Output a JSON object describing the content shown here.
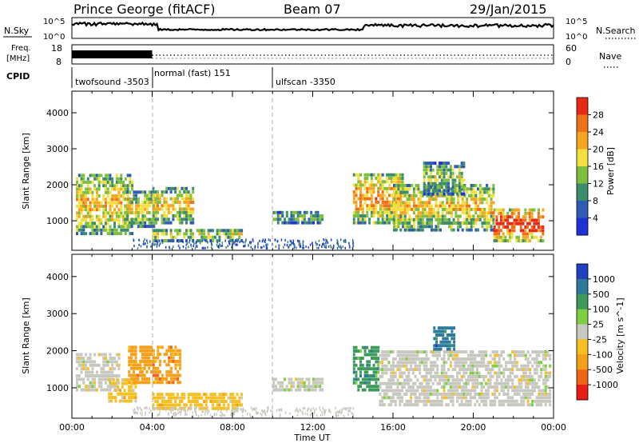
{
  "header": {
    "station": "Prince George (fitACF)",
    "beam": "Beam 07",
    "date": "29/Jan/2015"
  },
  "top_panels": {
    "nsky_label": "N.Sky",
    "nsky_ticks": [
      "10^5",
      "10^0"
    ],
    "nsearch_label": "N.Search",
    "nsearch_ticks": [
      "10^5",
      "10^0"
    ],
    "freq_label_1": "Freq.",
    "freq_label_2": "[MHz]",
    "freq_ticks": [
      "18",
      "8"
    ],
    "nave_label": "Nave",
    "nave_ticks": [
      "60",
      "0"
    ],
    "cpid_label": "CPID",
    "cpid_segments": [
      {
        "name": "twofsound -3503",
        "start_hour": 0
      },
      {
        "name": "normal (fast) 151",
        "start_hour": 4
      },
      {
        "name": "ulfscan -3350",
        "start_hour": 10
      }
    ]
  },
  "chart_data": [
    {
      "type": "heatmap",
      "name": "power-panel",
      "ylabel": "Slant Range [km]",
      "ylim": [
        180,
        4600
      ],
      "yticks": [
        1000,
        2000,
        3000,
        4000
      ],
      "xlim": [
        0,
        24
      ],
      "xticks": [
        0,
        4,
        8,
        12,
        16,
        20,
        24
      ],
      "colorbar": {
        "label": "Power [dB]",
        "ticks": [
          "4",
          "8",
          "12",
          "16",
          "20",
          "24",
          "28"
        ],
        "colors": [
          "#1e32d6",
          "#2e5db3",
          "#3c8c6e",
          "#7fbf3f",
          "#f2e040",
          "#f5a623",
          "#f07018",
          "#e82a14"
        ],
        "range": [
          0,
          32
        ]
      },
      "echo_regions": [
        {
          "t0": 0.2,
          "t1": 3.0,
          "r0": 600,
          "r1": 2300,
          "level": 0.62
        },
        {
          "t0": 2.6,
          "t1": 4.2,
          "r0": 800,
          "r1": 1800,
          "level": 0.55
        },
        {
          "t0": 4.0,
          "t1": 6.0,
          "r0": 900,
          "r1": 1900,
          "level": 0.6
        },
        {
          "t0": 4.0,
          "t1": 8.5,
          "r0": 400,
          "r1": 750,
          "level": 0.5
        },
        {
          "t0": 10.0,
          "t1": 12.5,
          "r0": 900,
          "r1": 1200,
          "level": 0.4
        },
        {
          "t0": 14.0,
          "t1": 16.5,
          "r0": 900,
          "r1": 2300,
          "level": 0.72
        },
        {
          "t0": 16.0,
          "t1": 21.0,
          "r0": 700,
          "r1": 2000,
          "level": 0.62
        },
        {
          "t0": 17.5,
          "t1": 19.5,
          "r0": 1700,
          "r1": 2600,
          "level": 0.45
        },
        {
          "t0": 21.0,
          "t1": 23.5,
          "r0": 400,
          "r1": 1300,
          "level": 0.95
        }
      ]
    },
    {
      "type": "heatmap",
      "name": "velocity-panel",
      "ylabel": "Slant Range [km]",
      "ylim": [
        180,
        4600
      ],
      "yticks": [
        1000,
        2000,
        3000,
        4000
      ],
      "xlim": [
        0,
        24
      ],
      "xticks": [
        0,
        4,
        8,
        12,
        16,
        20,
        24
      ],
      "xticklabels": [
        "00:00",
        "04:00",
        "08:00",
        "12:00",
        "16:00",
        "20:00",
        "00:00"
      ],
      "xlabel": "Time UT",
      "colorbar": {
        "label": "Velocity [m s^-1]",
        "ticks": [
          "1000",
          "500",
          "100",
          "25",
          "-25",
          "-100",
          "-500",
          "-1000"
        ],
        "colors": [
          "#2040c0",
          "#2e7a9c",
          "#3c9a5a",
          "#7fd040",
          "#c8c8c0",
          "#f5c020",
          "#f5a018",
          "#f06418",
          "#e81e14"
        ],
        "range": [
          -1200,
          1200
        ]
      },
      "echo_regions": [
        {
          "t0": 0.2,
          "t1": 2.4,
          "r0": 900,
          "r1": 1900,
          "velocity": 0
        },
        {
          "t0": 1.8,
          "t1": 3.2,
          "r0": 600,
          "r1": 1200,
          "velocity": -100
        },
        {
          "t0": 2.8,
          "t1": 5.4,
          "r0": 1100,
          "r1": 2100,
          "velocity": -500
        },
        {
          "t0": 4.0,
          "t1": 8.5,
          "r0": 400,
          "r1": 800,
          "velocity": -100
        },
        {
          "t0": 10.0,
          "t1": 12.5,
          "r0": 900,
          "r1": 1200,
          "velocity": 0
        },
        {
          "t0": 14.0,
          "t1": 15.3,
          "r0": 900,
          "r1": 2100,
          "velocity": 150
        },
        {
          "t0": 15.3,
          "t1": 23.8,
          "r0": 500,
          "r1": 2000,
          "velocity": 0
        },
        {
          "t0": 18.0,
          "t1": 19.0,
          "r0": 2000,
          "r1": 2600,
          "velocity": 700
        }
      ]
    }
  ]
}
